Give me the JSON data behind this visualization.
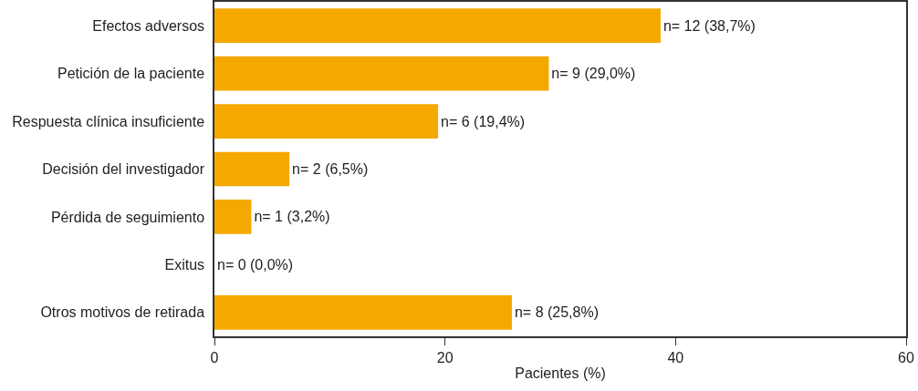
{
  "chart_data": {
    "type": "bar",
    "orientation": "horizontal",
    "xlabel": "Pacientes (%)",
    "categories": [
      "Efectos adversos",
      "Petición de la paciente",
      "Respuesta clínica insuficiente",
      "Decisión del investigador",
      "Pérdida de seguimiento",
      "Exitus",
      "Otros motivos de retirada"
    ],
    "values": [
      38.7,
      29.0,
      19.4,
      6.5,
      3.2,
      0.0,
      25.8
    ],
    "value_labels": [
      "n= 12 (38,7%)",
      "n= 9 (29,0%)",
      "n= 6 (19,4%)",
      "n= 2 (6,5%)",
      "n= 1 (3,2%)",
      "n= 0 (0,0%)",
      "n= 8 (25,8%)"
    ],
    "color": "#f5a800",
    "xlim": [
      0,
      60
    ],
    "xticks": [
      0,
      20,
      40,
      60
    ]
  }
}
